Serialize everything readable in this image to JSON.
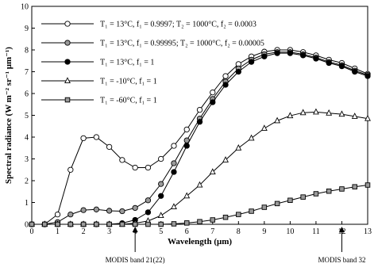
{
  "chart_data": {
    "type": "line",
    "xlabel": "Wavelength (μm)",
    "ylabel": "Spectral radiance (W m⁻² sr⁻¹ μm⁻¹)",
    "xlim": [
      0,
      13
    ],
    "ylim": [
      0,
      10
    ],
    "xticks": [
      "0",
      "1",
      "2",
      "3",
      "4",
      "5",
      "6",
      "7",
      "8",
      "9",
      "10",
      "11",
      "12",
      "13"
    ],
    "yticks": [
      "0",
      "1",
      "2",
      "3",
      "4",
      "5",
      "6",
      "7",
      "8",
      "9",
      "10"
    ],
    "grid": false,
    "legend_position": "top-left",
    "x": [
      0,
      0.5,
      1,
      1.5,
      2,
      2.5,
      3,
      3.5,
      4,
      4.5,
      5,
      5.5,
      6,
      6.5,
      7,
      7.5,
      8,
      8.5,
      9,
      9.5,
      10,
      10.5,
      11,
      11.5,
      12,
      12.5,
      13
    ],
    "series": [
      {
        "name": "T₁ = 13°C, f₁ = 0.9997; T₂ = 1000°C, f₂ = 0.0003",
        "marker": "circle-open",
        "values": [
          0,
          0,
          0.45,
          2.5,
          3.95,
          4.0,
          3.55,
          2.95,
          2.6,
          2.6,
          3.0,
          3.6,
          4.35,
          5.25,
          6.05,
          6.8,
          7.35,
          7.7,
          7.92,
          8.0,
          8.0,
          7.9,
          7.75,
          7.55,
          7.4,
          7.15,
          6.9
        ]
      },
      {
        "name": "T₁ = 13°C, f₁ = 0.99995; T₂ = 1000°C, f₂ = 0.00005",
        "marker": "circle-gray",
        "values": [
          0,
          0,
          0.1,
          0.45,
          0.65,
          0.68,
          0.62,
          0.6,
          0.75,
          1.1,
          1.85,
          2.8,
          3.85,
          4.85,
          5.75,
          6.55,
          7.15,
          7.55,
          7.8,
          7.9,
          7.9,
          7.8,
          7.65,
          7.45,
          7.3,
          7.05,
          6.85
        ]
      },
      {
        "name": "T₁ = 13°C, f₁ = 1",
        "marker": "circle-filled",
        "values": [
          0,
          0,
          0,
          0,
          0,
          0,
          0,
          0.05,
          0.2,
          0.55,
          1.3,
          2.4,
          3.6,
          4.7,
          5.6,
          6.4,
          7.0,
          7.45,
          7.7,
          7.85,
          7.85,
          7.75,
          7.6,
          7.4,
          7.25,
          7.0,
          6.8
        ]
      },
      {
        "name": "T₁ = -10°C, f₁ = 1",
        "marker": "triangle-open",
        "values": [
          0,
          0,
          0,
          0,
          0,
          0,
          0,
          0,
          0.05,
          0.15,
          0.4,
          0.8,
          1.3,
          1.8,
          2.4,
          2.95,
          3.5,
          3.95,
          4.4,
          4.75,
          4.98,
          5.12,
          5.15,
          5.1,
          5.05,
          4.95,
          4.85
        ]
      },
      {
        "name": "T₁ = -60°C, f₁ = 1",
        "marker": "square-gray",
        "values": [
          0,
          0,
          0,
          0,
          0,
          0,
          0,
          0,
          0,
          0,
          0,
          0.02,
          0.06,
          0.12,
          0.2,
          0.32,
          0.45,
          0.6,
          0.78,
          0.95,
          1.1,
          1.25,
          1.4,
          1.52,
          1.62,
          1.72,
          1.8
        ]
      }
    ],
    "annotations": [
      {
        "label": "MODIS band 21(22)",
        "x": 4
      },
      {
        "label": "MODIS band 32",
        "x": 12
      }
    ]
  }
}
